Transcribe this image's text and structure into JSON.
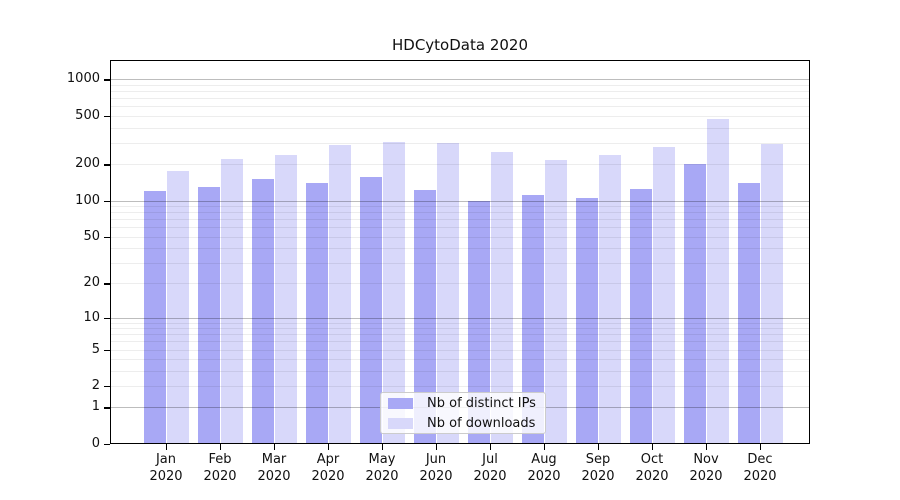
{
  "chart_data": {
    "type": "bar",
    "title": "HDCytoData 2020",
    "categories": [
      "Jan",
      "Feb",
      "Mar",
      "Apr",
      "May",
      "Jun",
      "Jul",
      "Aug",
      "Sep",
      "Oct",
      "Nov",
      "Dec"
    ],
    "category_year": "2020",
    "series": [
      {
        "name": "Nb of distinct IPs",
        "color": "#a8a8f5",
        "values": [
          120,
          130,
          150,
          140,
          158,
          122,
          100,
          112,
          104,
          124,
          200,
          140
        ]
      },
      {
        "name": "Nb of downloads",
        "color": "#d8d8fa",
        "values": [
          175,
          220,
          240,
          290,
          305,
          300,
          250,
          218,
          238,
          280,
          470,
          295
        ]
      }
    ],
    "xlabel": "",
    "ylabel": "",
    "y_scale": "log10(value+1)",
    "ylim": [
      0,
      1000
    ],
    "y_ticks": [
      0,
      1,
      2,
      5,
      10,
      20,
      50,
      100,
      200,
      500,
      1000
    ],
    "grid": "horizontal",
    "legend_position": "bottom-center-inside"
  }
}
